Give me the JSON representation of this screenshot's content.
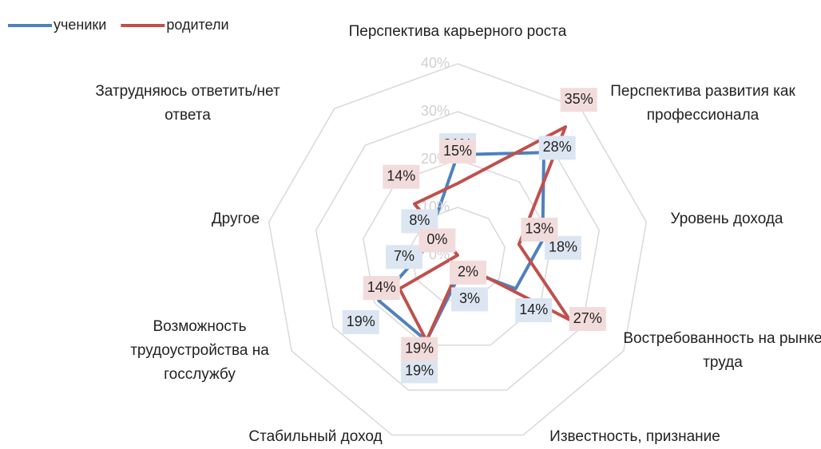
{
  "chart_data": {
    "type": "radar",
    "categories": [
      "Перспектива карьерного роста",
      "Перспектива развития как профессионала",
      "Уровень дохода",
      "Востребованность на рынке труда",
      "Известность, признание",
      "Стабильный доход",
      "Возможность трудоустройства на госслужбу",
      "Другое",
      "Затрудняюсь ответить/нет ответа"
    ],
    "series": [
      {
        "name": "ученики",
        "color": "#4f81bd",
        "values": [
          21,
          28,
          18,
          14,
          3,
          19,
          19,
          7,
          8
        ],
        "value_labels": [
          "21%",
          "28%",
          "18%",
          "14%",
          "3%",
          "19%",
          "19%",
          "7%",
          "8%"
        ]
      },
      {
        "name": "родители",
        "color": "#c0504d",
        "values": [
          15,
          35,
          13,
          27,
          2,
          19,
          14,
          0,
          14
        ],
        "value_labels": [
          "15%",
          "35%",
          "13%",
          "27%",
          "2%",
          "19%",
          "14%",
          "0%",
          "14%"
        ]
      }
    ],
    "ylim": [
      0,
      40
    ],
    "yticks": [
      {
        "value": 0,
        "label": "0%"
      },
      {
        "value": 10,
        "label": "10%"
      },
      {
        "value": 20,
        "label": "20%"
      },
      {
        "value": 30,
        "label": "30%"
      },
      {
        "value": 40,
        "label": "40%"
      }
    ],
    "grid": true,
    "legend": "top-left"
  }
}
